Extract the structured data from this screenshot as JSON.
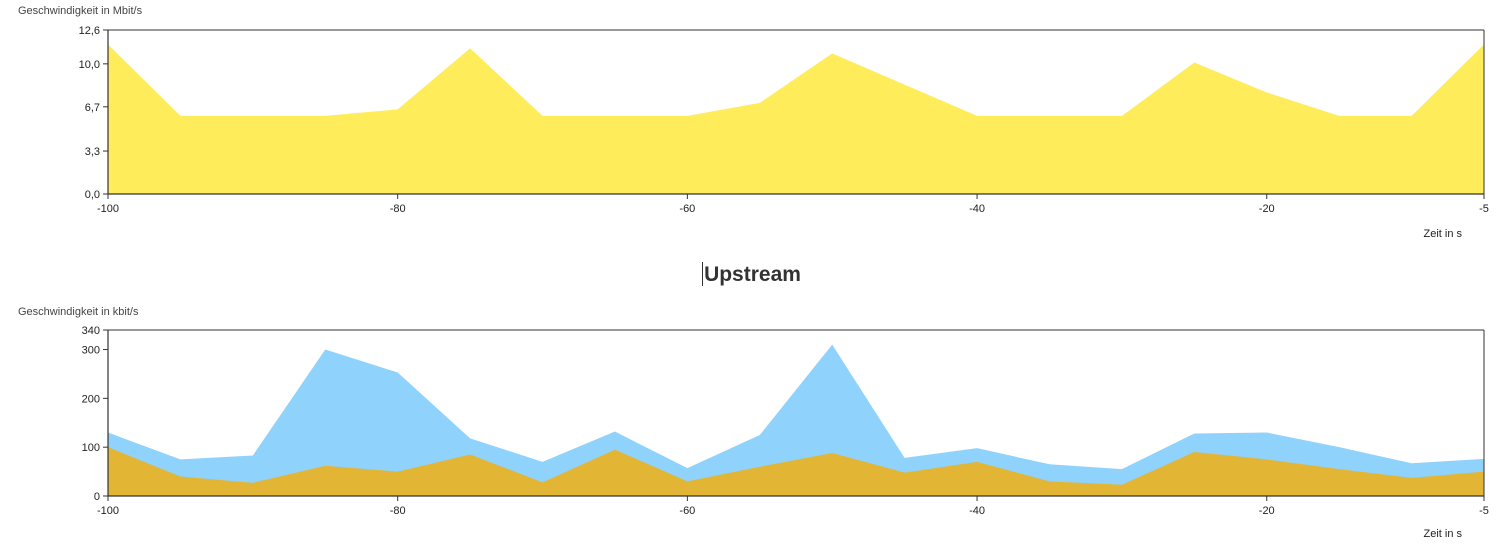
{
  "downstream": {
    "ylabel": "Geschwindigkeit in Mbit/s",
    "xlabel": "Zeit in s"
  },
  "upstream": {
    "title": "Upstream",
    "ylabel": "Geschwindigkeit in kbit/s",
    "xlabel": "Zeit in s"
  },
  "colors": {
    "yellow": "#ffec5b",
    "blue": "#8fd2fc",
    "gold": "#e3b535",
    "axis": "#333333"
  },
  "chart_data": [
    {
      "type": "area",
      "xlabel": "Zeit in s",
      "ylabel": "Geschwindigkeit in Mbit/s",
      "xlim": [
        -100,
        -5
      ],
      "ylim": [
        0,
        12.6
      ],
      "xticks": [
        "-100",
        "-80",
        "-60",
        "-40",
        "-20",
        "-5"
      ],
      "xtick_values": [
        -100,
        -80,
        -60,
        -40,
        -20,
        -5
      ],
      "yticks": [
        "0,0",
        "3,3",
        "6,7",
        "10,0",
        "12,6"
      ],
      "ytick_values": [
        0,
        3.3,
        6.7,
        10.0,
        12.6
      ],
      "x": [
        -100,
        -95,
        -90,
        -85,
        -80,
        -75,
        -70,
        -65,
        -60,
        -55,
        -50,
        -45,
        -40,
        -35,
        -30,
        -25,
        -20,
        -15,
        -10,
        -5
      ],
      "series": [
        {
          "color": "#ffec5b",
          "values": [
            11.5,
            6.0,
            6.0,
            6.0,
            6.5,
            11.2,
            6.0,
            6.0,
            6.0,
            7.0,
            10.8,
            8.4,
            6.0,
            6.0,
            6.0,
            10.1,
            7.8,
            6.0,
            6.0,
            11.5
          ]
        }
      ],
      "grid": false
    },
    {
      "type": "area",
      "title": "Upstream",
      "xlabel": "Zeit in s",
      "ylabel": "Geschwindigkeit in kbit/s",
      "xlim": [
        -100,
        -5
      ],
      "ylim": [
        0,
        340
      ],
      "xticks": [
        "-100",
        "-80",
        "-60",
        "-40",
        "-20",
        "-5"
      ],
      "xtick_values": [
        -100,
        -80,
        -60,
        -40,
        -20,
        -5
      ],
      "yticks": [
        "0",
        "100",
        "200",
        "300",
        "340"
      ],
      "ytick_values": [
        0,
        100,
        200,
        300,
        340
      ],
      "x": [
        -100,
        -95,
        -90,
        -85,
        -80,
        -75,
        -70,
        -65,
        -60,
        -55,
        -50,
        -45,
        -40,
        -35,
        -30,
        -25,
        -20,
        -15,
        -10,
        -5
      ],
      "series": [
        {
          "color": "#8fd2fc",
          "values": [
            130,
            75,
            83,
            300,
            253,
            118,
            70,
            132,
            57,
            125,
            310,
            78,
            98,
            65,
            55,
            128,
            130,
            100,
            67,
            76
          ]
        },
        {
          "color": "#e3b535",
          "values": [
            100,
            40,
            27,
            62,
            50,
            85,
            28,
            95,
            30,
            60,
            88,
            48,
            70,
            30,
            23,
            90,
            75,
            55,
            37,
            50
          ]
        }
      ],
      "grid": false
    }
  ]
}
